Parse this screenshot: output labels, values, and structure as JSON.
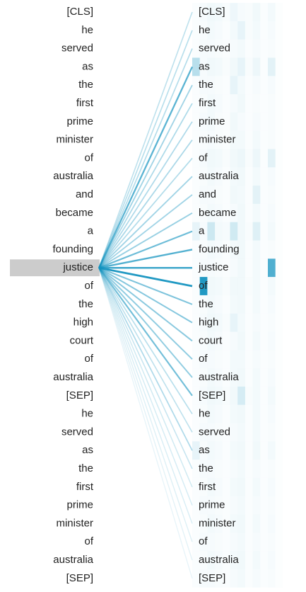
{
  "left_tokens": [
    "[CLS]",
    "he",
    "served",
    "as",
    "the",
    "first",
    "prime",
    "minister",
    "of",
    "australia",
    "and",
    "became",
    "a",
    "founding",
    "justice",
    "of",
    "the",
    "high",
    "court",
    "of",
    "australia",
    "[SEP]",
    "he",
    "served",
    "as",
    "the",
    "first",
    "prime",
    "minister",
    "of",
    "australia",
    "[SEP]"
  ],
  "right_tokens": [
    "[CLS]",
    "he",
    "served",
    "as",
    "the",
    "first",
    "prime",
    "minister",
    "of",
    "australia",
    "and",
    "became",
    "a",
    "founding",
    "justice",
    "of",
    "the",
    "high",
    "court",
    "of",
    "australia",
    "[SEP]",
    "he",
    "served",
    "as",
    "the",
    "first",
    "prime",
    "minister",
    "of",
    "australia",
    "[SEP]"
  ],
  "selected_index": 14,
  "attention_weights": [
    0.28,
    0.3,
    0.32,
    0.7,
    0.4,
    0.35,
    0.34,
    0.36,
    0.33,
    0.4,
    0.4,
    0.44,
    0.62,
    0.74,
    0.82,
    0.95,
    0.55,
    0.52,
    0.5,
    0.48,
    0.47,
    0.6,
    0.3,
    0.28,
    0.34,
    0.24,
    0.2,
    0.18,
    0.16,
    0.14,
    0.12,
    0.1
  ],
  "colors": {
    "line": "#1594c0",
    "heat": "#1594c0",
    "highlight": "#cccccc",
    "text": "#222222"
  },
  "heatmap_columns": 12,
  "heatmap_values": [
    [
      0.02,
      0.04,
      0.06,
      0.05,
      0.03,
      0.07,
      0.04,
      0.03,
      0.06,
      0.02,
      0.05,
      0.01
    ],
    [
      0.02,
      0.03,
      0.05,
      0.04,
      0.02,
      0.05,
      0.1,
      0.03,
      0.05,
      0.02,
      0.04,
      0.01
    ],
    [
      0.02,
      0.04,
      0.04,
      0.03,
      0.02,
      0.04,
      0.05,
      0.02,
      0.04,
      0.02,
      0.03,
      0.01
    ],
    [
      0.3,
      0.04,
      0.06,
      0.05,
      0.03,
      0.06,
      0.1,
      0.03,
      0.08,
      0.02,
      0.12,
      0.01
    ],
    [
      0.02,
      0.04,
      0.04,
      0.03,
      0.02,
      0.1,
      0.05,
      0.02,
      0.04,
      0.02,
      0.04,
      0.01
    ],
    [
      0.02,
      0.03,
      0.05,
      0.04,
      0.02,
      0.04,
      0.06,
      0.02,
      0.03,
      0.02,
      0.03,
      0.01
    ],
    [
      0.02,
      0.04,
      0.05,
      0.03,
      0.02,
      0.06,
      0.04,
      0.02,
      0.04,
      0.02,
      0.03,
      0.01
    ],
    [
      0.02,
      0.03,
      0.04,
      0.03,
      0.02,
      0.05,
      0.05,
      0.02,
      0.05,
      0.02,
      0.03,
      0.01
    ],
    [
      0.02,
      0.04,
      0.06,
      0.05,
      0.03,
      0.06,
      0.08,
      0.03,
      0.08,
      0.02,
      0.12,
      0.01
    ],
    [
      0.02,
      0.03,
      0.05,
      0.04,
      0.02,
      0.05,
      0.06,
      0.02,
      0.05,
      0.02,
      0.04,
      0.01
    ],
    [
      0.02,
      0.04,
      0.04,
      0.03,
      0.02,
      0.06,
      0.05,
      0.02,
      0.12,
      0.02,
      0.03,
      0.01
    ],
    [
      0.02,
      0.03,
      0.05,
      0.04,
      0.02,
      0.04,
      0.06,
      0.02,
      0.05,
      0.02,
      0.04,
      0.01
    ],
    [
      0.1,
      0.04,
      0.22,
      0.05,
      0.04,
      0.2,
      0.06,
      0.03,
      0.14,
      0.02,
      0.05,
      0.01
    ],
    [
      0.02,
      0.03,
      0.05,
      0.04,
      0.02,
      0.05,
      0.06,
      0.02,
      0.05,
      0.02,
      0.03,
      0.01
    ],
    [
      0.02,
      0.04,
      0.04,
      0.03,
      0.02,
      0.04,
      0.06,
      0.02,
      0.05,
      0.02,
      0.75,
      0.01
    ],
    [
      0.02,
      0.95,
      0.06,
      0.05,
      0.03,
      0.06,
      0.06,
      0.03,
      0.05,
      0.02,
      0.05,
      0.01
    ],
    [
      0.02,
      0.03,
      0.05,
      0.04,
      0.02,
      0.05,
      0.06,
      0.02,
      0.05,
      0.02,
      0.04,
      0.01
    ],
    [
      0.02,
      0.04,
      0.06,
      0.05,
      0.03,
      0.1,
      0.05,
      0.02,
      0.04,
      0.02,
      0.03,
      0.01
    ],
    [
      0.02,
      0.03,
      0.05,
      0.04,
      0.02,
      0.04,
      0.06,
      0.02,
      0.05,
      0.02,
      0.04,
      0.01
    ],
    [
      0.02,
      0.04,
      0.04,
      0.03,
      0.02,
      0.05,
      0.05,
      0.02,
      0.04,
      0.02,
      0.03,
      0.01
    ],
    [
      0.02,
      0.03,
      0.05,
      0.04,
      0.02,
      0.05,
      0.06,
      0.02,
      0.05,
      0.02,
      0.04,
      0.01
    ],
    [
      0.02,
      0.04,
      0.06,
      0.05,
      0.03,
      0.06,
      0.18,
      0.03,
      0.05,
      0.02,
      0.05,
      0.01
    ],
    [
      0.02,
      0.03,
      0.05,
      0.04,
      0.02,
      0.05,
      0.06,
      0.02,
      0.05,
      0.02,
      0.04,
      0.01
    ],
    [
      0.02,
      0.04,
      0.04,
      0.03,
      0.02,
      0.04,
      0.05,
      0.02,
      0.05,
      0.02,
      0.03,
      0.01
    ],
    [
      0.1,
      0.03,
      0.05,
      0.04,
      0.02,
      0.05,
      0.06,
      0.02,
      0.06,
      0.02,
      0.05,
      0.01
    ],
    [
      0.02,
      0.04,
      0.04,
      0.03,
      0.02,
      0.04,
      0.05,
      0.02,
      0.04,
      0.02,
      0.03,
      0.01
    ],
    [
      0.02,
      0.03,
      0.05,
      0.04,
      0.02,
      0.05,
      0.06,
      0.02,
      0.05,
      0.02,
      0.04,
      0.01
    ],
    [
      0.02,
      0.04,
      0.04,
      0.03,
      0.02,
      0.04,
      0.05,
      0.02,
      0.04,
      0.02,
      0.03,
      0.01
    ],
    [
      0.02,
      0.03,
      0.05,
      0.04,
      0.02,
      0.05,
      0.06,
      0.02,
      0.05,
      0.02,
      0.04,
      0.01
    ],
    [
      0.02,
      0.04,
      0.04,
      0.03,
      0.02,
      0.04,
      0.05,
      0.02,
      0.04,
      0.02,
      0.03,
      0.01
    ],
    [
      0.02,
      0.03,
      0.05,
      0.04,
      0.02,
      0.05,
      0.06,
      0.02,
      0.05,
      0.02,
      0.04,
      0.01
    ],
    [
      0.02,
      0.04,
      0.04,
      0.03,
      0.02,
      0.04,
      0.05,
      0.02,
      0.04,
      0.02,
      0.03,
      0.01
    ]
  ]
}
